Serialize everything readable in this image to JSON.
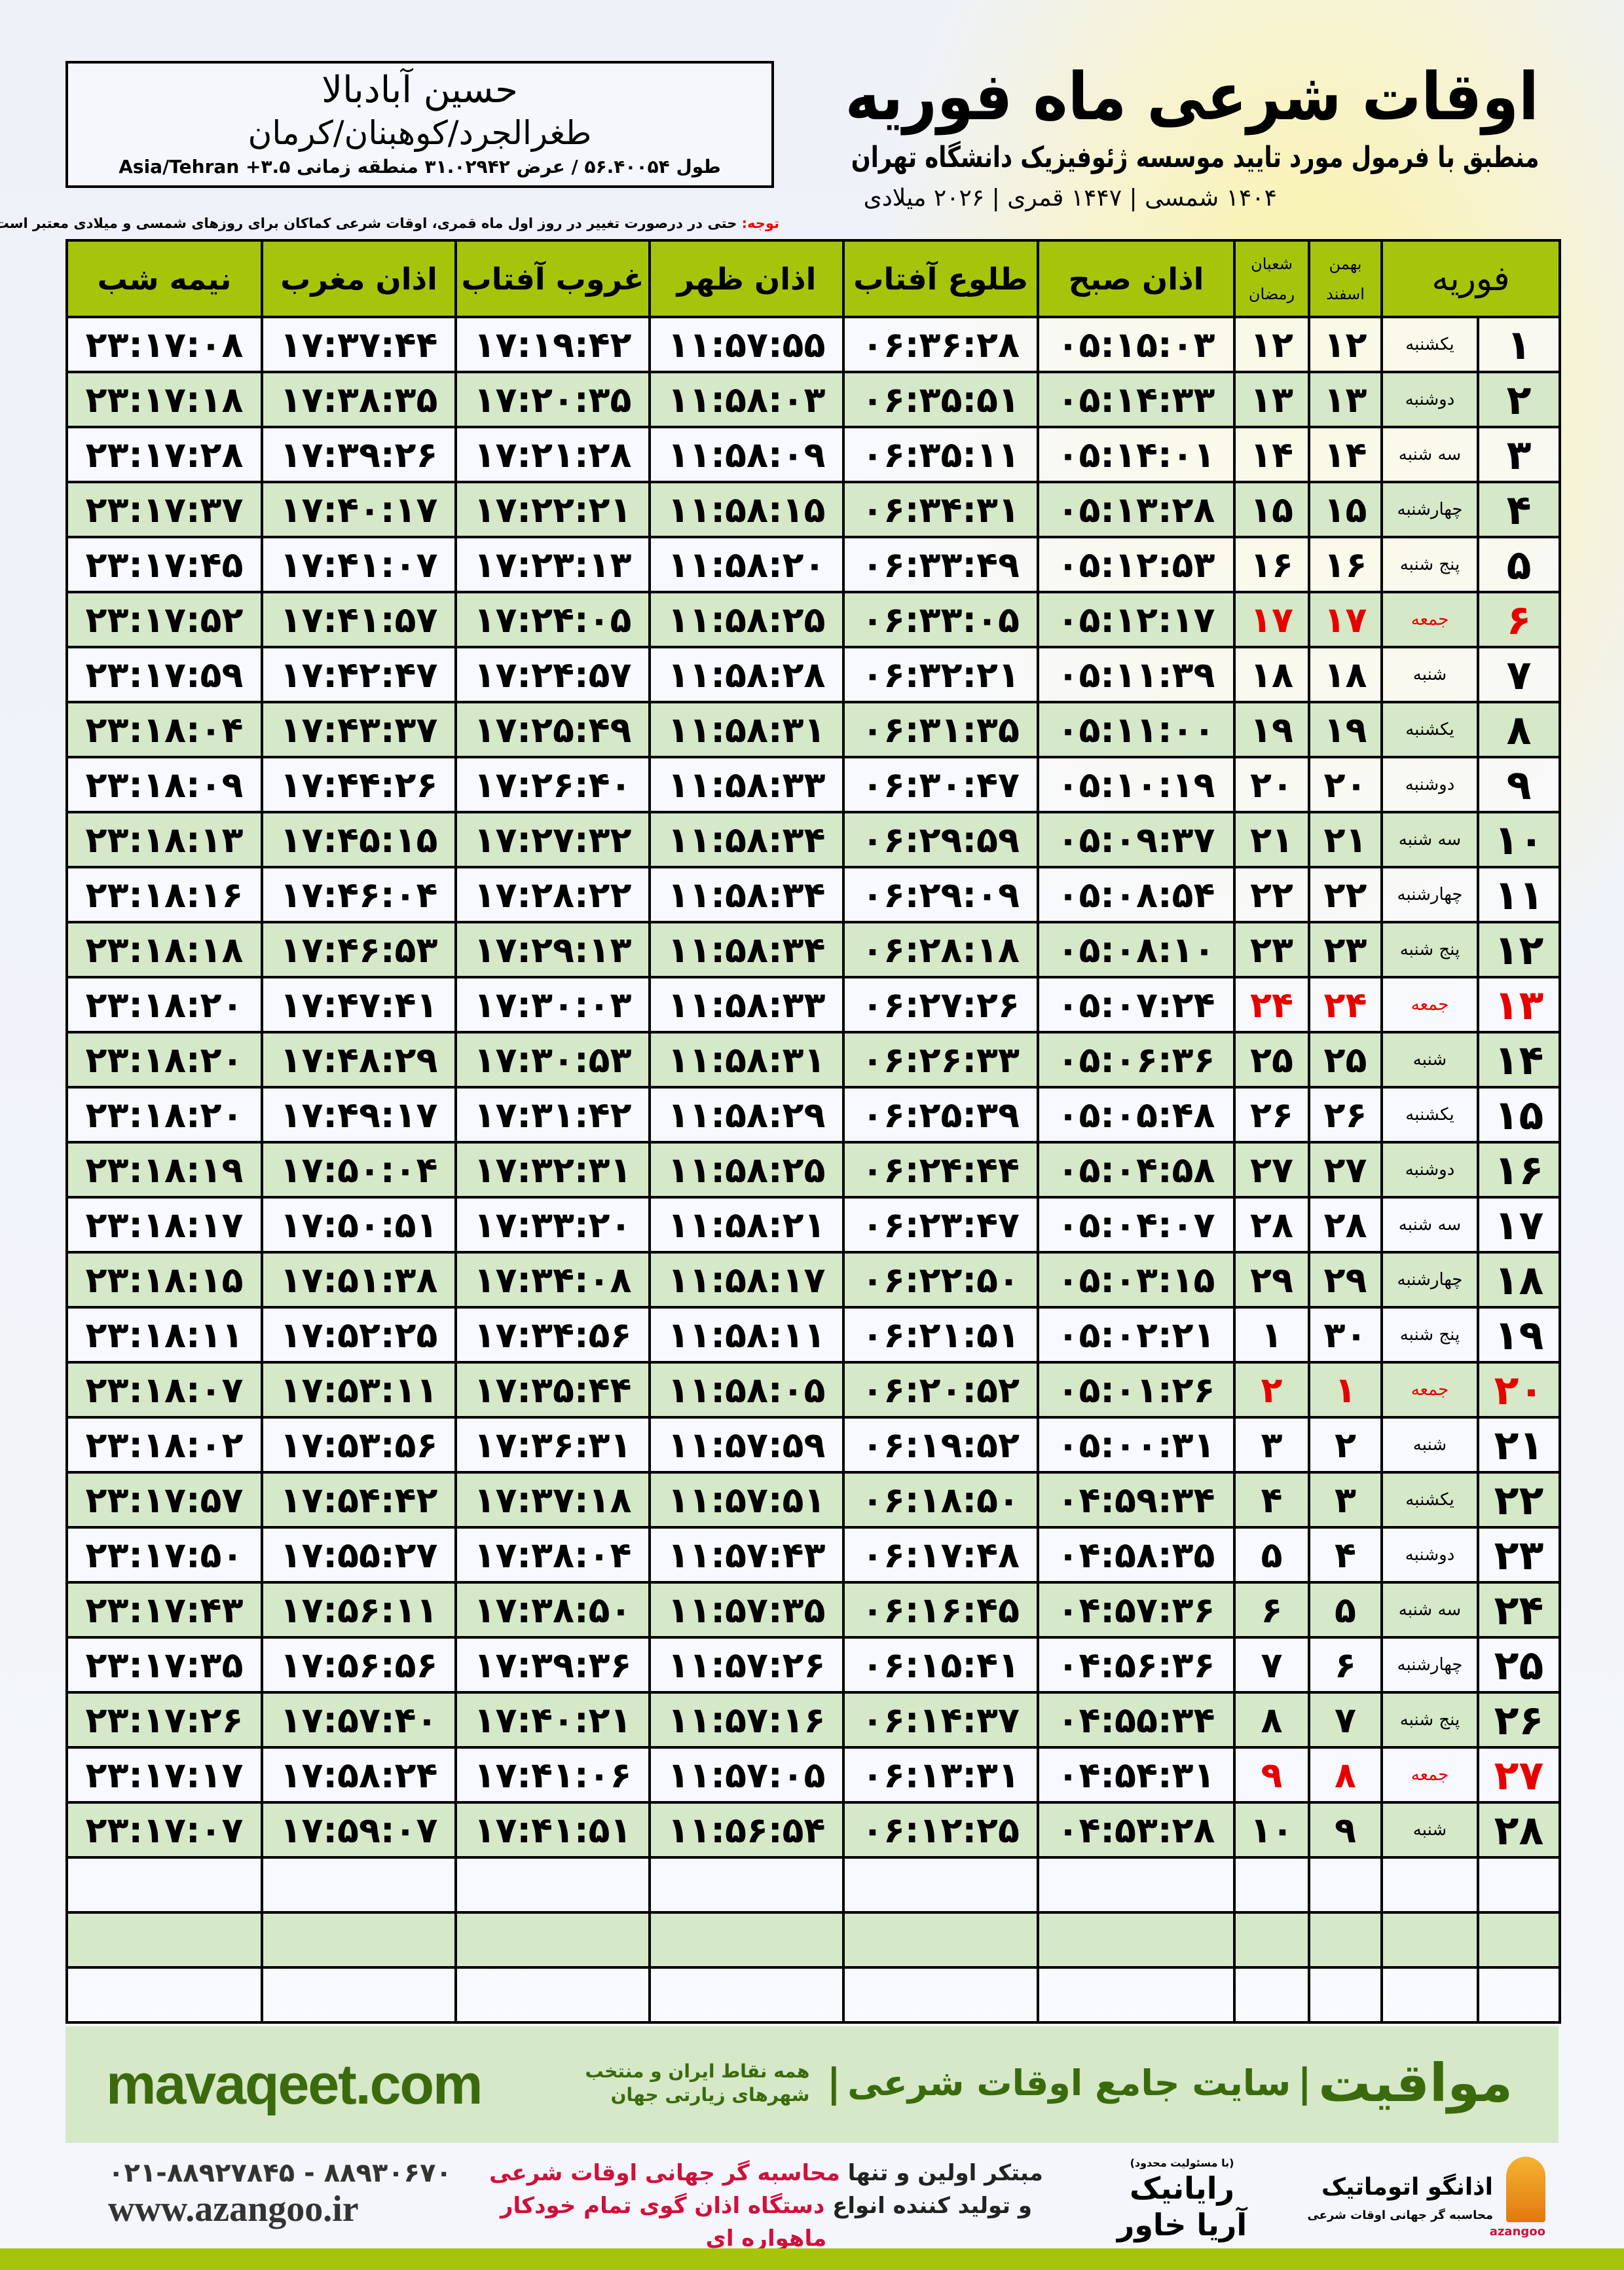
{
  "header": {
    "city": "حسین آبادبالا",
    "region": "طغرالجرد/کوهبنان/کرمان",
    "coords": "طول ۵۶.۴۰۰۵۴ / عرض ۳۱.۰۲۹۴۲ منطقه زمانی ۳.۵+ Asia/Tehran",
    "title": "اوقات شرعی ماه فوریه",
    "subtitle": "منطبق با فرمول مورد تایید موسسه ژئوفیزیک دانشگاه تهران",
    "years": "۱۴۰۴ شمسی | ۱۴۴۷ قمری | ۲۰۲۶ میلادی",
    "note_label": "توجه:",
    "note_text": " حتی در درصورت تغییر در روز اول ماه قمری، اوقات شرعی کماکان برای روزهای شمسی و میلادی معتبر است."
  },
  "colors": {
    "header_green": "#a6c50a",
    "row_green": "#d5e8c8",
    "friday_red": "#e60000",
    "brand_green": "#3b6a0c"
  },
  "table": {
    "columns": {
      "month": "فوریه",
      "solar_1": "بهمن",
      "solar_2": "اسفند",
      "lunar_1": "شعبان",
      "lunar_2": "رمضان",
      "fajr": "اذان صبح",
      "sunrise": "طلوع آفتاب",
      "dhuhr": "اذان ظهر",
      "sunset": "غروب آفتاب",
      "maghrib": "اذان مغرب",
      "midnight": "نیمه شب"
    },
    "rows": [
      [
        "۱",
        "یکشنبه",
        "۱۲",
        "۱۲",
        "۰۵:۱۵:۰۳",
        "۰۶:۳۶:۲۸",
        "۱۱:۵۷:۵۵",
        "۱۷:۱۹:۴۲",
        "۱۷:۳۷:۴۴",
        "۲۳:۱۷:۰۸"
      ],
      [
        "۲",
        "دوشنبه",
        "۱۳",
        "۱۳",
        "۰۵:۱۴:۳۳",
        "۰۶:۳۵:۵۱",
        "۱۱:۵۸:۰۳",
        "۱۷:۲۰:۳۵",
        "۱۷:۳۸:۳۵",
        "۲۳:۱۷:۱۸"
      ],
      [
        "۳",
        "سه شنبه",
        "۱۴",
        "۱۴",
        "۰۵:۱۴:۰۱",
        "۰۶:۳۵:۱۱",
        "۱۱:۵۸:۰۹",
        "۱۷:۲۱:۲۸",
        "۱۷:۳۹:۲۶",
        "۲۳:۱۷:۲۸"
      ],
      [
        "۴",
        "چهارشنبه",
        "۱۵",
        "۱۵",
        "۰۵:۱۳:۲۸",
        "۰۶:۳۴:۳۱",
        "۱۱:۵۸:۱۵",
        "۱۷:۲۲:۲۱",
        "۱۷:۴۰:۱۷",
        "۲۳:۱۷:۳۷"
      ],
      [
        "۵",
        "پنج شنبه",
        "۱۶",
        "۱۶",
        "۰۵:۱۲:۵۳",
        "۰۶:۳۳:۴۹",
        "۱۱:۵۸:۲۰",
        "۱۷:۲۳:۱۳",
        "۱۷:۴۱:۰۷",
        "۲۳:۱۷:۴۵"
      ],
      [
        "۶",
        "جمعه",
        "۱۷",
        "۱۷",
        "۰۵:۱۲:۱۷",
        "۰۶:۳۳:۰۵",
        "۱۱:۵۸:۲۵",
        "۱۷:۲۴:۰۵",
        "۱۷:۴۱:۵۷",
        "۲۳:۱۷:۵۲"
      ],
      [
        "۷",
        "شنبه",
        "۱۸",
        "۱۸",
        "۰۵:۱۱:۳۹",
        "۰۶:۳۲:۲۱",
        "۱۱:۵۸:۲۸",
        "۱۷:۲۴:۵۷",
        "۱۷:۴۲:۴۷",
        "۲۳:۱۷:۵۹"
      ],
      [
        "۸",
        "یکشنبه",
        "۱۹",
        "۱۹",
        "۰۵:۱۱:۰۰",
        "۰۶:۳۱:۳۵",
        "۱۱:۵۸:۳۱",
        "۱۷:۲۵:۴۹",
        "۱۷:۴۳:۳۷",
        "۲۳:۱۸:۰۴"
      ],
      [
        "۹",
        "دوشنبه",
        "۲۰",
        "۲۰",
        "۰۵:۱۰:۱۹",
        "۰۶:۳۰:۴۷",
        "۱۱:۵۸:۳۳",
        "۱۷:۲۶:۴۰",
        "۱۷:۴۴:۲۶",
        "۲۳:۱۸:۰۹"
      ],
      [
        "۱۰",
        "سه شنبه",
        "۲۱",
        "۲۱",
        "۰۵:۰۹:۳۷",
        "۰۶:۲۹:۵۹",
        "۱۱:۵۸:۳۴",
        "۱۷:۲۷:۳۲",
        "۱۷:۴۵:۱۵",
        "۲۳:۱۸:۱۳"
      ],
      [
        "۱۱",
        "چهارشنبه",
        "۲۲",
        "۲۲",
        "۰۵:۰۸:۵۴",
        "۰۶:۲۹:۰۹",
        "۱۱:۵۸:۳۴",
        "۱۷:۲۸:۲۲",
        "۱۷:۴۶:۰۴",
        "۲۳:۱۸:۱۶"
      ],
      [
        "۱۲",
        "پنج شنبه",
        "۲۳",
        "۲۳",
        "۰۵:۰۸:۱۰",
        "۰۶:۲۸:۱۸",
        "۱۱:۵۸:۳۴",
        "۱۷:۲۹:۱۳",
        "۱۷:۴۶:۵۳",
        "۲۳:۱۸:۱۸"
      ],
      [
        "۱۳",
        "جمعه",
        "۲۴",
        "۲۴",
        "۰۵:۰۷:۲۴",
        "۰۶:۲۷:۲۶",
        "۱۱:۵۸:۳۳",
        "۱۷:۳۰:۰۳",
        "۱۷:۴۷:۴۱",
        "۲۳:۱۸:۲۰"
      ],
      [
        "۱۴",
        "شنبه",
        "۲۵",
        "۲۵",
        "۰۵:۰۶:۳۶",
        "۰۶:۲۶:۳۳",
        "۱۱:۵۸:۳۱",
        "۱۷:۳۰:۵۳",
        "۱۷:۴۸:۲۹",
        "۲۳:۱۸:۲۰"
      ],
      [
        "۱۵",
        "یکشنبه",
        "۲۶",
        "۲۶",
        "۰۵:۰۵:۴۸",
        "۰۶:۲۵:۳۹",
        "۱۱:۵۸:۲۹",
        "۱۷:۳۱:۴۲",
        "۱۷:۴۹:۱۷",
        "۲۳:۱۸:۲۰"
      ],
      [
        "۱۶",
        "دوشنبه",
        "۲۷",
        "۲۷",
        "۰۵:۰۴:۵۸",
        "۰۶:۲۴:۴۴",
        "۱۱:۵۸:۲۵",
        "۱۷:۳۲:۳۱",
        "۱۷:۵۰:۰۴",
        "۲۳:۱۸:۱۹"
      ],
      [
        "۱۷",
        "سه شنبه",
        "۲۸",
        "۲۸",
        "۰۵:۰۴:۰۷",
        "۰۶:۲۳:۴۷",
        "۱۱:۵۸:۲۱",
        "۱۷:۳۳:۲۰",
        "۱۷:۵۰:۵۱",
        "۲۳:۱۸:۱۷"
      ],
      [
        "۱۸",
        "چهارشنبه",
        "۲۹",
        "۲۹",
        "۰۵:۰۳:۱۵",
        "۰۶:۲۲:۵۰",
        "۱۱:۵۸:۱۷",
        "۱۷:۳۴:۰۸",
        "۱۷:۵۱:۳۸",
        "۲۳:۱۸:۱۵"
      ],
      [
        "۱۹",
        "پنج شنبه",
        "۳۰",
        "۱",
        "۰۵:۰۲:۲۱",
        "۰۶:۲۱:۵۱",
        "۱۱:۵۸:۱۱",
        "۱۷:۳۴:۵۶",
        "۱۷:۵۲:۲۵",
        "۲۳:۱۸:۱۱"
      ],
      [
        "۲۰",
        "جمعه",
        "۱",
        "۲",
        "۰۵:۰۱:۲۶",
        "۰۶:۲۰:۵۲",
        "۱۱:۵۸:۰۵",
        "۱۷:۳۵:۴۴",
        "۱۷:۵۳:۱۱",
        "۲۳:۱۸:۰۷"
      ],
      [
        "۲۱",
        "شنبه",
        "۲",
        "۳",
        "۰۵:۰۰:۳۱",
        "۰۶:۱۹:۵۲",
        "۱۱:۵۷:۵۹",
        "۱۷:۳۶:۳۱",
        "۱۷:۵۳:۵۶",
        "۲۳:۱۸:۰۲"
      ],
      [
        "۲۲",
        "یکشنبه",
        "۳",
        "۴",
        "۰۴:۵۹:۳۴",
        "۰۶:۱۸:۵۰",
        "۱۱:۵۷:۵۱",
        "۱۷:۳۷:۱۸",
        "۱۷:۵۴:۴۲",
        "۲۳:۱۷:۵۷"
      ],
      [
        "۲۳",
        "دوشنبه",
        "۴",
        "۵",
        "۰۴:۵۸:۳۵",
        "۰۶:۱۷:۴۸",
        "۱۱:۵۷:۴۳",
        "۱۷:۳۸:۰۴",
        "۱۷:۵۵:۲۷",
        "۲۳:۱۷:۵۰"
      ],
      [
        "۲۴",
        "سه شنبه",
        "۵",
        "۶",
        "۰۴:۵۷:۳۶",
        "۰۶:۱۶:۴۵",
        "۱۱:۵۷:۳۵",
        "۱۷:۳۸:۵۰",
        "۱۷:۵۶:۱۱",
        "۲۳:۱۷:۴۳"
      ],
      [
        "۲۵",
        "چهارشنبه",
        "۶",
        "۷",
        "۰۴:۵۶:۳۶",
        "۰۶:۱۵:۴۱",
        "۱۱:۵۷:۲۶",
        "۱۷:۳۹:۳۶",
        "۱۷:۵۶:۵۶",
        "۲۳:۱۷:۳۵"
      ],
      [
        "۲۶",
        "پنج شنبه",
        "۷",
        "۸",
        "۰۴:۵۵:۳۴",
        "۰۶:۱۴:۳۷",
        "۱۱:۵۷:۱۶",
        "۱۷:۴۰:۲۱",
        "۱۷:۵۷:۴۰",
        "۲۳:۱۷:۲۶"
      ],
      [
        "۲۷",
        "جمعه",
        "۸",
        "۹",
        "۰۴:۵۴:۳۱",
        "۰۶:۱۳:۳۱",
        "۱۱:۵۷:۰۵",
        "۱۷:۴۱:۰۶",
        "۱۷:۵۸:۲۴",
        "۲۳:۱۷:۱۷"
      ],
      [
        "۲۸",
        "شنبه",
        "۹",
        "۱۰",
        "۰۴:۵۳:۲۸",
        "۰۶:۱۲:۲۵",
        "۱۱:۵۶:۵۴",
        "۱۷:۴۱:۵۱",
        "۱۷:۵۹:۰۷",
        "۲۳:۱۷:۰۷"
      ]
    ],
    "friday_label": "جمعه"
  },
  "footer": {
    "site": "mavaqeet.com",
    "brand": "مواقیت",
    "tagline": "سایت جامع اوقات شرعی",
    "tagline2": "همه نقاط ایران و منتخب شهرهای زیارتی جهان",
    "phone": "۰۲۱-۸۸۹۲۷۸۴۵ - ۸۸۹۳۰۶۷۰",
    "web": "www.azangoo.ir",
    "promo_1a": "مبتکر اولین و تنها ",
    "promo_1b": "محاسبه گر جهانی اوقات شرعی",
    "promo_2a": "و تولید کننده انواع ",
    "promo_2b": "دستگاه اذان گوی تمام خودکار ماهواره ای",
    "logo_rayanik_small": "(با مسئولیت محدود)",
    "logo_rayanik": "رایانیک آریا خاور",
    "logo_azangoo": "اذانگو اتوماتیک",
    "logo_azangoo_small": "محاسبه گر جهانی اوقات شرعی",
    "logo_azangoo_latin": "azangoo"
  }
}
